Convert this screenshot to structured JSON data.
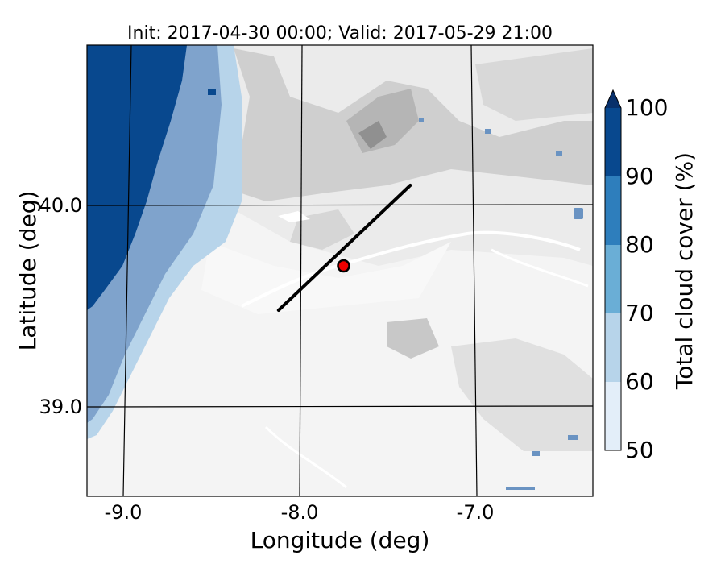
{
  "title": "Init: 2017-04-30 00:00; Valid: 2017-05-29 21:00",
  "axes": {
    "xlabel": "Longitude (deg)",
    "ylabel": "Latitude (deg)",
    "x_ticks": [
      "-9.0",
      "-8.0",
      "-7.0"
    ],
    "y_ticks": [
      "40.0",
      "39.0"
    ]
  },
  "colorbar": {
    "label": "Total cloud cover (%)",
    "ticks": [
      "50",
      "60",
      "70",
      "80",
      "90",
      "100"
    ],
    "colors": [
      "#e3eef9",
      "#b7d4ea",
      "#6aaed6",
      "#2e7ebc",
      "#08488e",
      "#08306b"
    ],
    "extend": "max"
  },
  "map": {
    "lon_range": [
      -9.25,
      -6.35
    ],
    "lat_range": [
      38.55,
      40.8
    ],
    "graticule_lons": [
      -9.0,
      -8.0,
      -7.0
    ],
    "graticule_lats": [
      40.0,
      39.0
    ],
    "background_colormap": "Greys (terrain contours)",
    "transect": {
      "start": [
        -8.12,
        39.48
      ],
      "end": [
        -7.37,
        40.1
      ]
    },
    "marker": {
      "lon": -7.75,
      "lat": 39.7,
      "fill": "#ee0000",
      "edge": "#000000"
    }
  }
}
